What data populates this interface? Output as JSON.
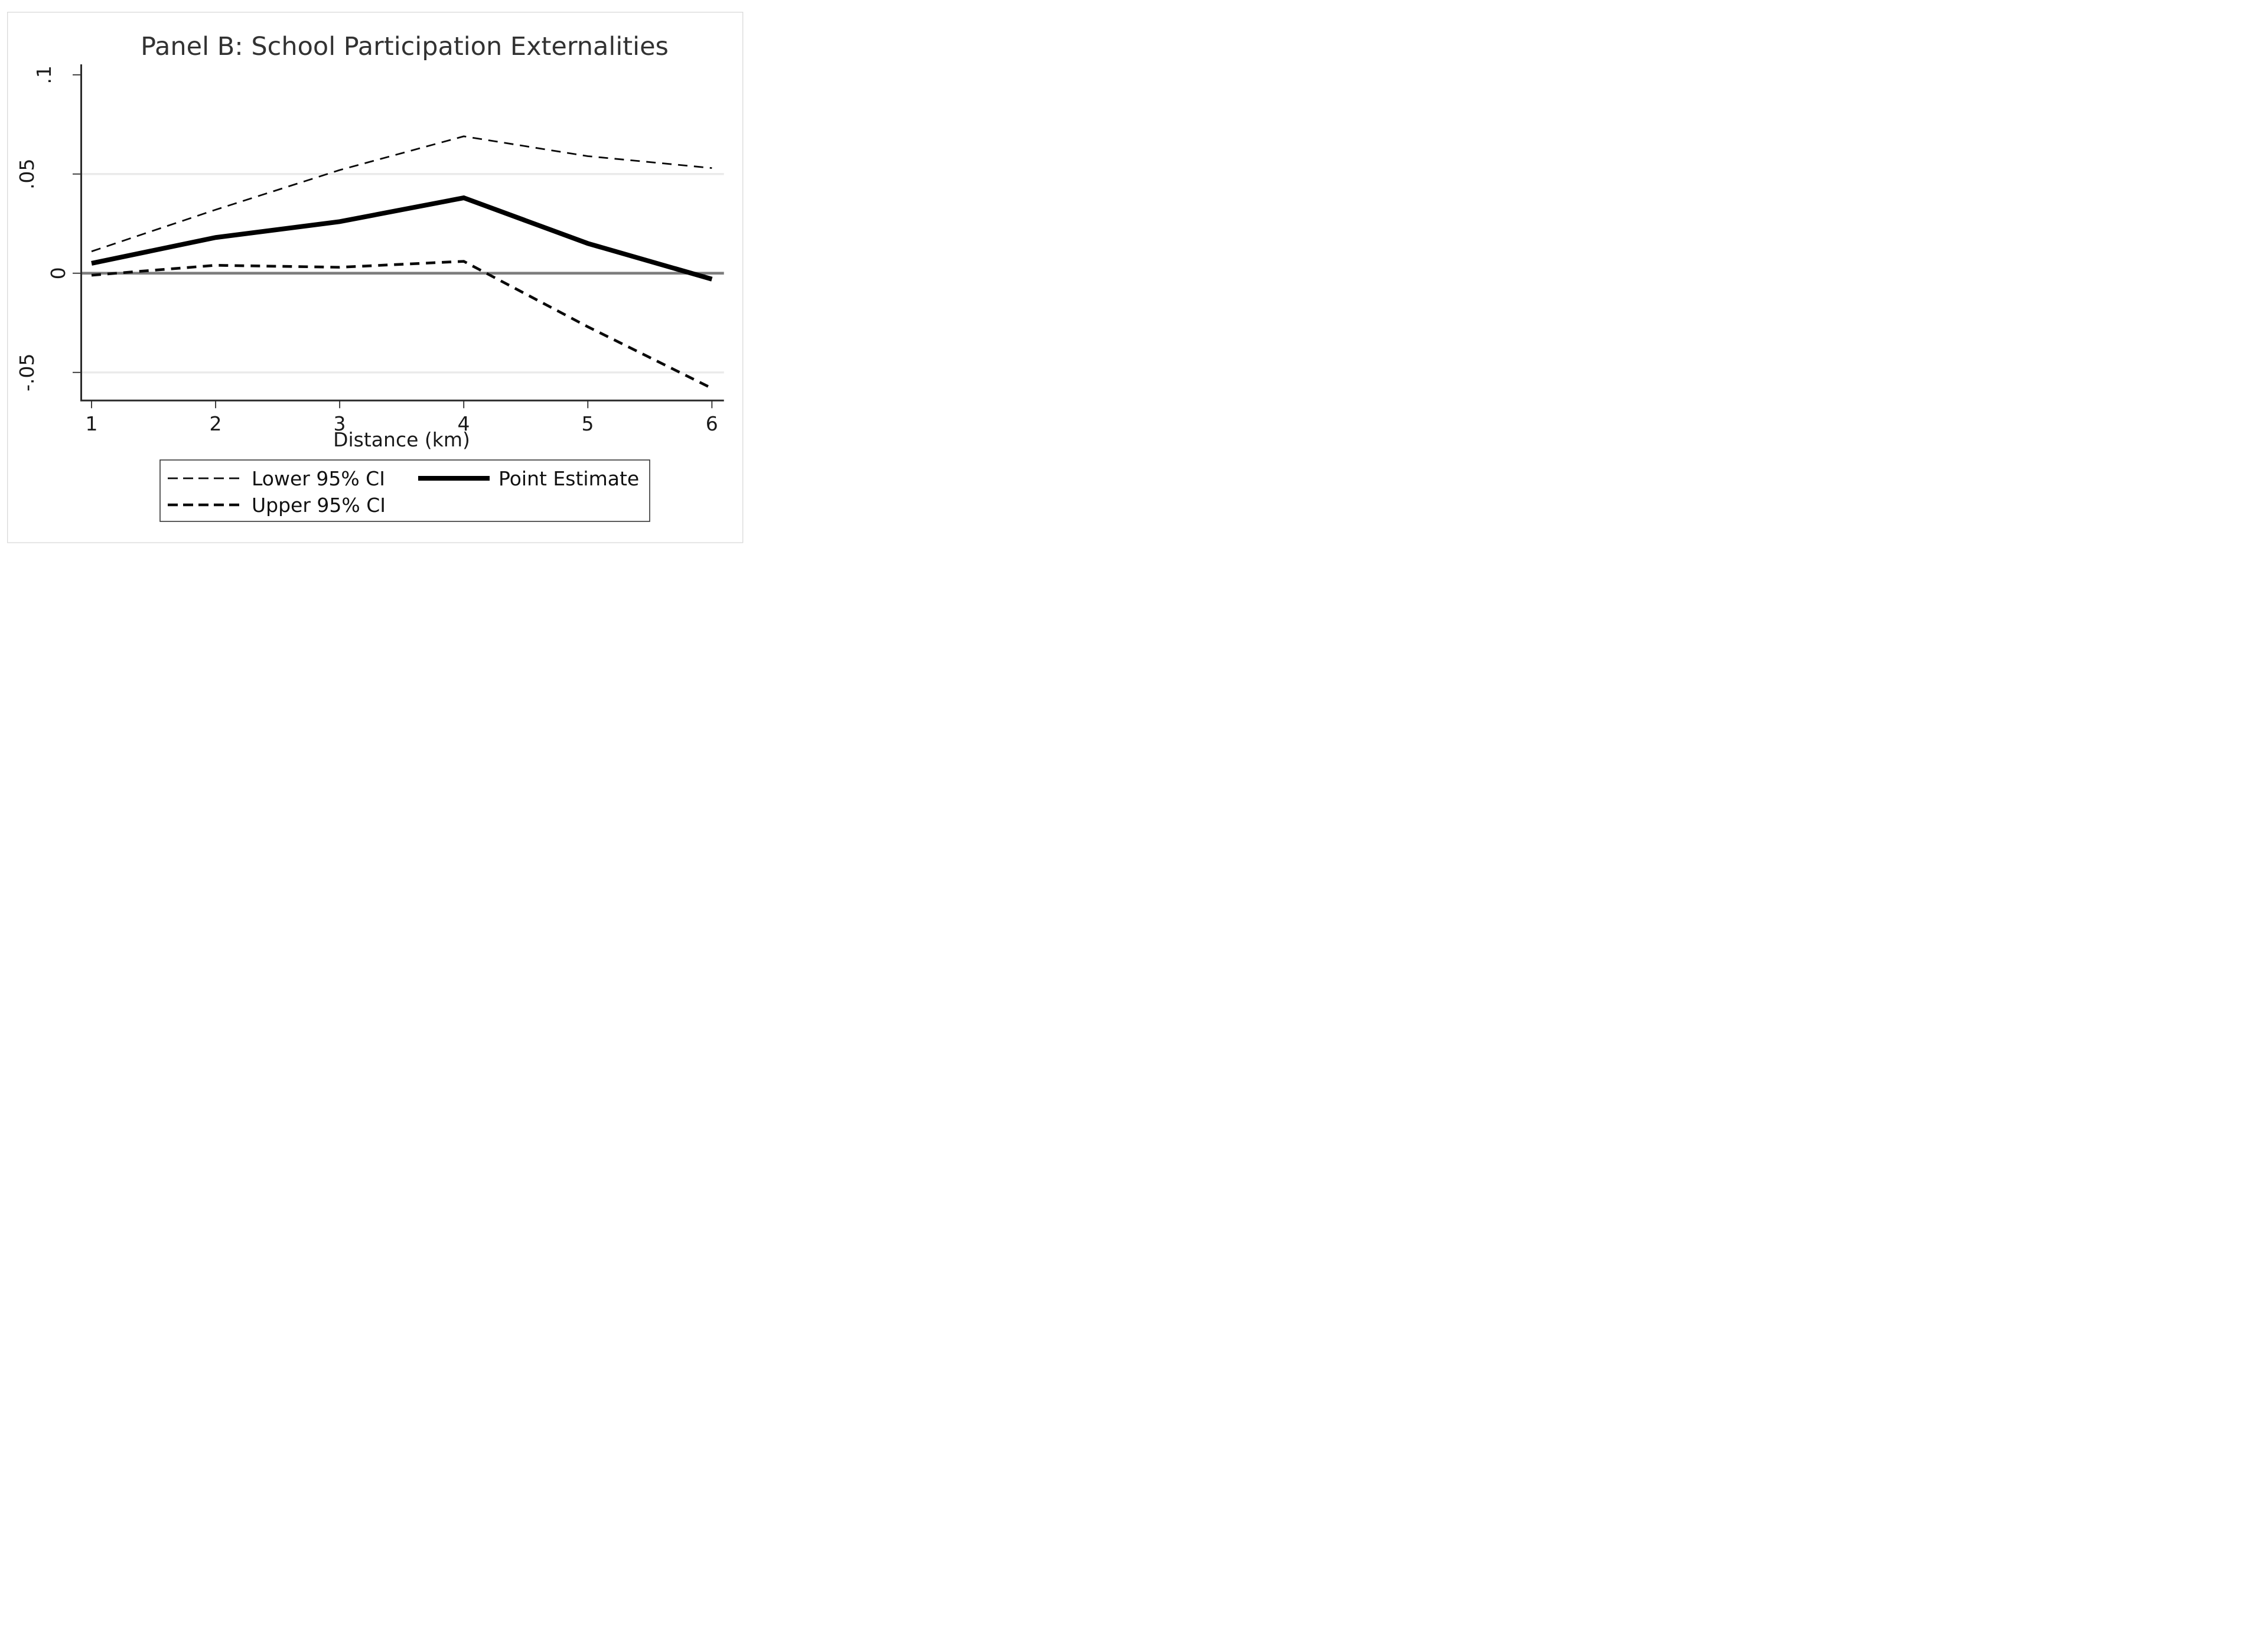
{
  "chart_data": {
    "type": "line",
    "title": "Panel B: School Participation Externalities",
    "xlabel": "Distance (km)",
    "ylabel": "",
    "x": [
      1,
      2,
      3,
      4,
      5,
      6
    ],
    "xticks": [
      "1",
      "2",
      "3",
      "4",
      "5",
      "6"
    ],
    "yticks": [
      {
        "value": 0.1,
        "label": ".1",
        "gridline": false,
        "zero_line": false
      },
      {
        "value": 0.05,
        "label": ".05",
        "gridline": true,
        "zero_line": false
      },
      {
        "value": 0,
        "label": "0",
        "gridline": false,
        "zero_line": true
      },
      {
        "value": -0.05,
        "label": "-.05",
        "gridline": true,
        "zero_line": false
      }
    ],
    "xlim": [
      0.91,
      6.1
    ],
    "ylim": [
      -0.064,
      0.105
    ],
    "grid": "light horizontal gridlines at .05 and -.05; solid gray reference line at 0",
    "legend_position": "bottom",
    "series": [
      {
        "name": "Lower 95% CI",
        "line_style": "dashed",
        "stroke_width": 2.8,
        "color": "#0a0a0a",
        "note": "upper thin dashed curve as drawn",
        "values": [
          0.011,
          0.032,
          0.052,
          0.069,
          0.059,
          0.053
        ]
      },
      {
        "name": "Upper 95% CI",
        "line_style": "dashed",
        "stroke_width": 4.6,
        "color": "#0a0a0a",
        "note": "lower thick dashed curve as drawn",
        "values": [
          -0.001,
          0.004,
          0.003,
          0.006,
          -0.027,
          -0.058
        ]
      },
      {
        "name": "Point Estimate",
        "line_style": "solid",
        "stroke_width": 8,
        "color": "#000000",
        "values": [
          0.005,
          0.018,
          0.026,
          0.038,
          0.015,
          -0.003
        ]
      }
    ],
    "colors": {
      "axis": "#2b2b2b",
      "tick": "#2b2b2b",
      "gridline": "#eaeaea",
      "zero_line": "#7d7d7d",
      "frame": "#d9d9d9",
      "text": "#1a1a1a",
      "title": "#323232",
      "background": "#ffffff"
    }
  }
}
